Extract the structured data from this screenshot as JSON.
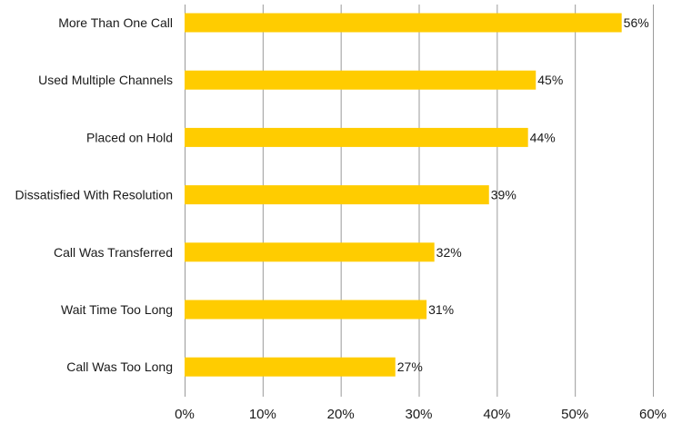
{
  "chart_data": {
    "type": "bar",
    "orientation": "horizontal",
    "categories": [
      "More Than One Call",
      "Used Multiple Channels",
      "Placed on Hold",
      "Dissatisfied With Resolution",
      "Call Was Transferred",
      "Wait Time Too Long",
      "Call Was Too Long"
    ],
    "values": [
      56,
      45,
      44,
      39,
      32,
      31,
      27
    ],
    "value_labels": [
      "56%",
      "45%",
      "44%",
      "39%",
      "32%",
      "31%",
      "27%"
    ],
    "xlim": [
      0,
      60
    ],
    "xticks": [
      0,
      10,
      20,
      30,
      40,
      50,
      60
    ],
    "xtick_labels": [
      "0%",
      "10%",
      "20%",
      "30%",
      "40%",
      "50%",
      "60%"
    ],
    "grid": "vertical",
    "bar_color": "#FFCC00",
    "title": "",
    "xlabel": "",
    "ylabel": ""
  }
}
